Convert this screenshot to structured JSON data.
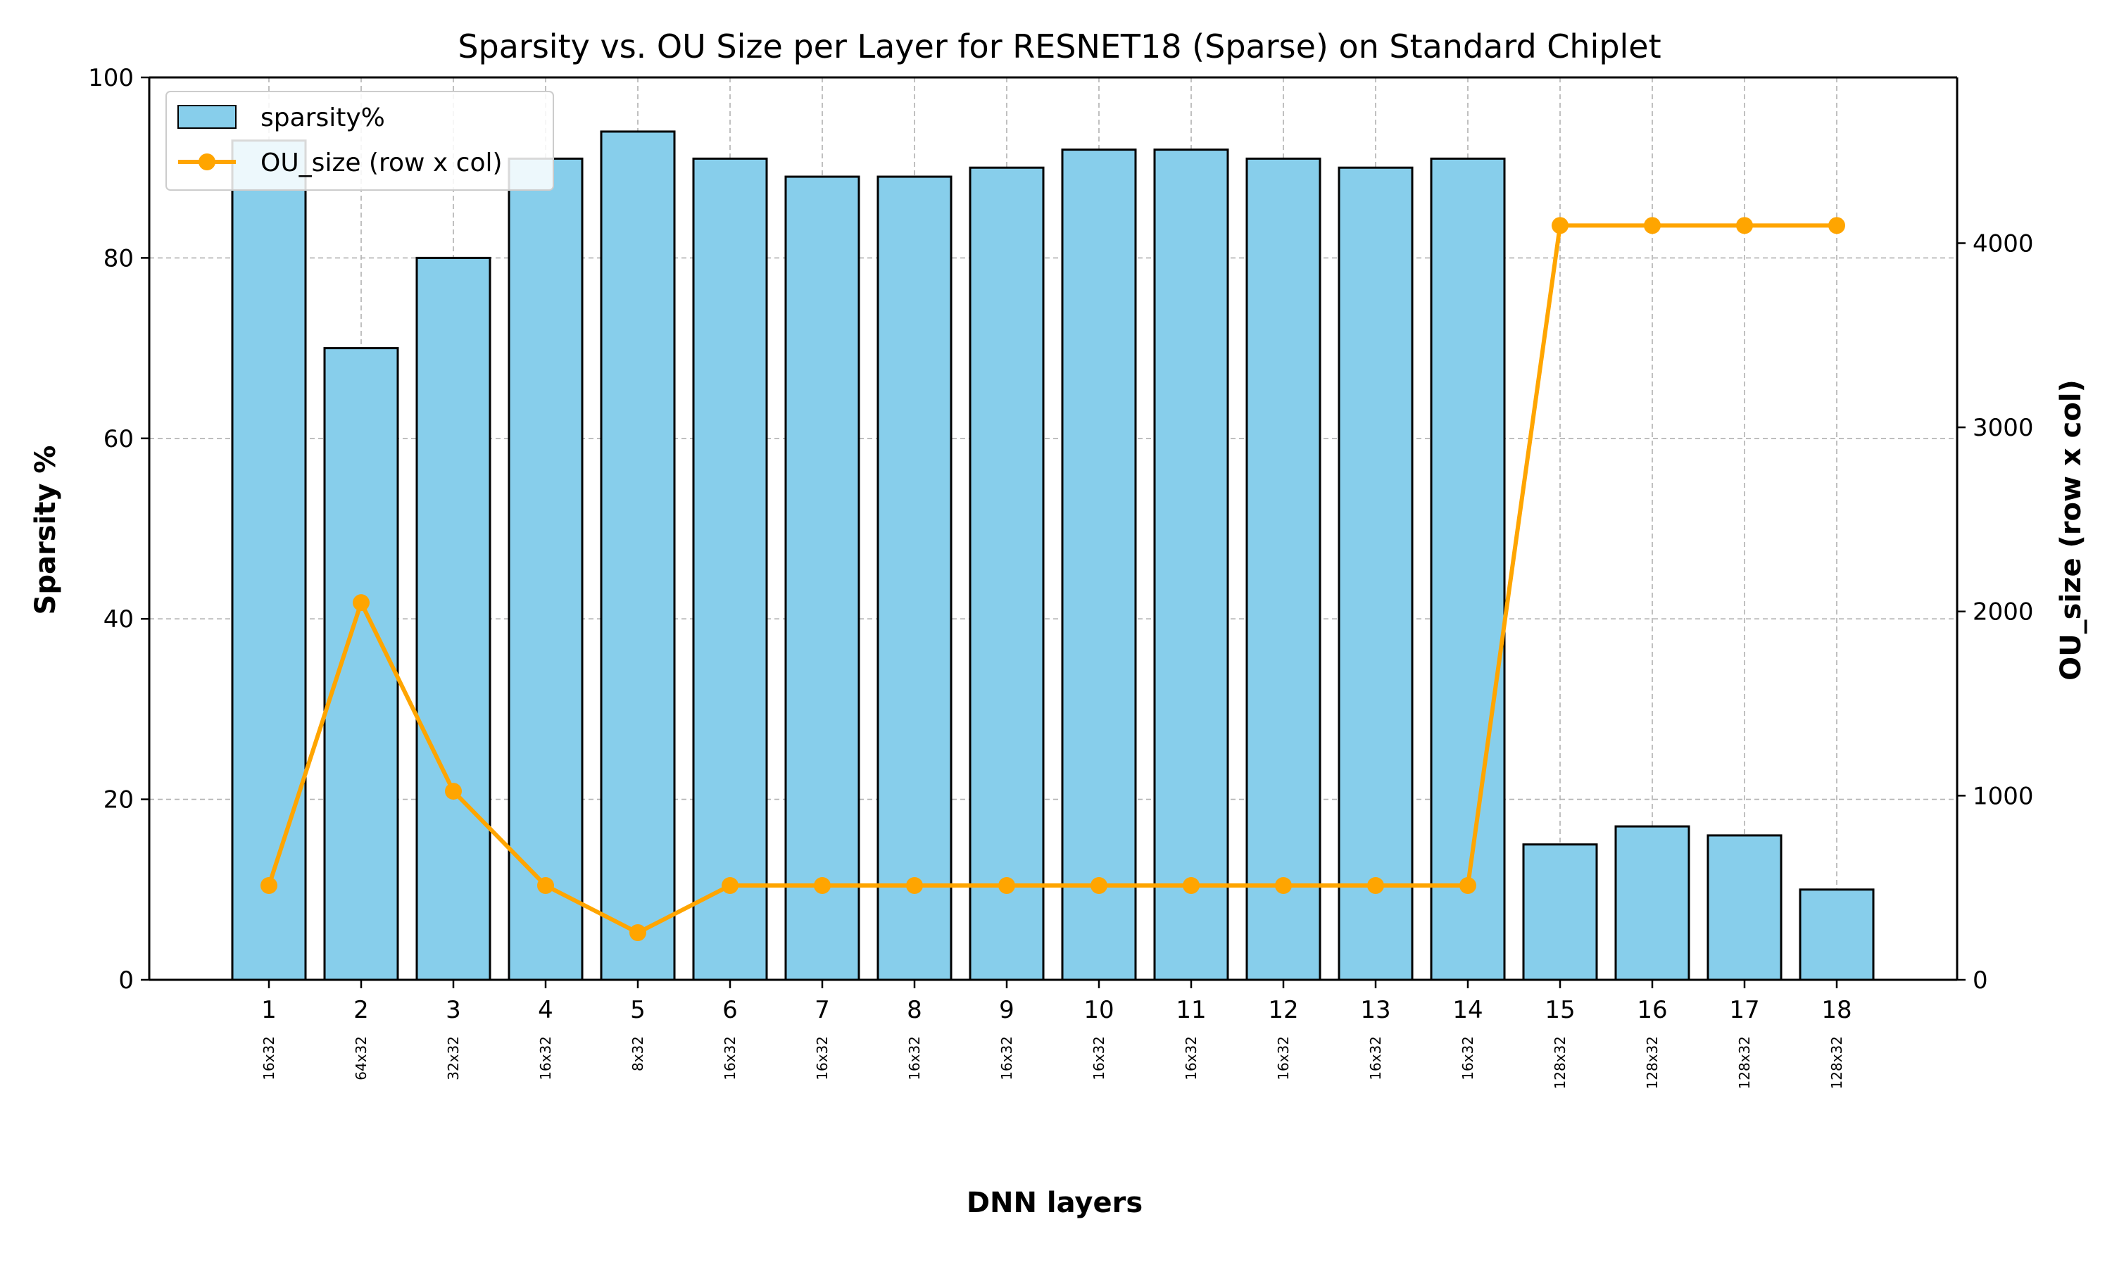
{
  "colors": {
    "bar_fill": "#87ceeb",
    "bar_edge": "#000000",
    "line": "#ffa500",
    "grid": "#b0b0b0"
  },
  "chart_data": {
    "type": "bar",
    "title": "Sparsity vs. OU Size per Layer for RESNET18 (Sparse) on Standard Chiplet",
    "xlabel": "DNN layers",
    "ylabel": "Sparsity %",
    "y2label": "OU_size (row x col)",
    "categories": [
      "1",
      "2",
      "3",
      "4",
      "5",
      "6",
      "7",
      "8",
      "9",
      "10",
      "11",
      "12",
      "13",
      "14",
      "15",
      "16",
      "17",
      "18"
    ],
    "ou_labels": [
      "16x32",
      "64x32",
      "32x32",
      "16x32",
      "8x32",
      "16x32",
      "16x32",
      "16x32",
      "16x32",
      "16x32",
      "16x32",
      "16x32",
      "16x32",
      "16x32",
      "128x32",
      "128x32",
      "128x32",
      "128x32"
    ],
    "ylim": [
      0,
      100
    ],
    "y2lim": [
      0,
      4900
    ],
    "yticks": [
      0,
      20,
      40,
      60,
      80,
      100
    ],
    "y2ticks": [
      0,
      1000,
      2000,
      3000,
      4000
    ],
    "grid": true,
    "legend_position": "top-left",
    "series": [
      {
        "name": "sparsity%",
        "type": "bar",
        "axis": "left",
        "values": [
          93,
          70,
          80,
          91,
          94,
          91,
          89,
          89,
          90,
          92,
          92,
          91,
          90,
          91,
          15,
          17,
          16,
          10
        ]
      },
      {
        "name": "OU_size (row x col)",
        "type": "line",
        "axis": "right",
        "values": [
          512,
          2048,
          1024,
          512,
          256,
          512,
          512,
          512,
          512,
          512,
          512,
          512,
          512,
          512,
          4096,
          4096,
          4096,
          4096
        ]
      }
    ]
  }
}
